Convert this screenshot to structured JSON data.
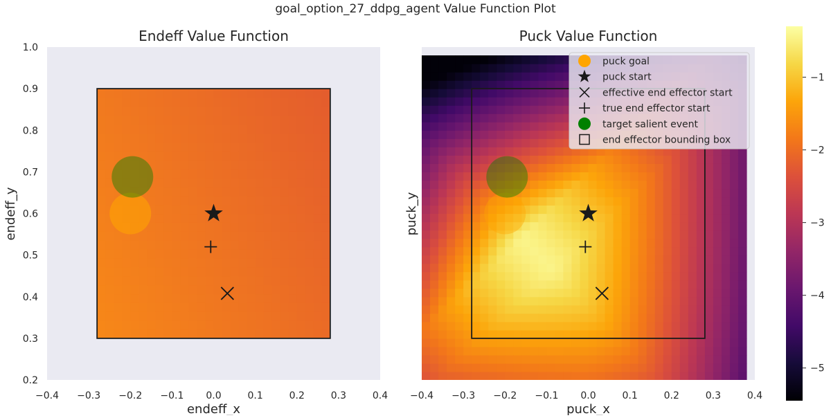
{
  "figure": {
    "suptitle": "goal_option_27_ddpg_agent Value Function Plot"
  },
  "colors": {
    "axes_bg": "#eaeaf2",
    "endeff_fill": "#ed6f2b",
    "box_stroke": "#1a1a1a",
    "goal": "#ffa500",
    "salient": "#008000",
    "marker": "#1a1a1a"
  },
  "colorbar": {
    "colormap": "inferno",
    "vmin": -5.45,
    "vmax": -0.3,
    "ticks": [
      -1,
      -2,
      -3,
      -4,
      -5
    ],
    "tick_labels": [
      "−1",
      "−2",
      "−3",
      "−4",
      "−5"
    ]
  },
  "legend": {
    "location": "upper right",
    "entries": [
      {
        "label": "puck goal",
        "marker": "circle",
        "color": "#ffa500"
      },
      {
        "label": "puck start",
        "marker": "star",
        "color": "#1a1a1a"
      },
      {
        "label": "effective end effector start",
        "marker": "x",
        "color": "#1a1a1a"
      },
      {
        "label": "true end effector start",
        "marker": "plus",
        "color": "#1a1a1a"
      },
      {
        "label": "target salient event",
        "marker": "circle",
        "color": "#008000"
      },
      {
        "label": "end effector bounding box",
        "marker": "square",
        "color": "#1a1a1a"
      }
    ]
  },
  "chart_data": [
    {
      "type": "heatmap",
      "title": "Endeff Value Function",
      "xlabel": "endeff_x",
      "ylabel": "endeff_y",
      "xlim": [
        -0.4,
        0.4
      ],
      "ylim": [
        0.2,
        1.0
      ],
      "xticks": [
        -0.4,
        -0.3,
        -0.2,
        -0.1,
        0.0,
        0.1,
        0.2,
        0.3,
        0.4
      ],
      "xtick_labels": [
        "−0.4",
        "−0.3",
        "−0.2",
        "−0.1",
        "0.0",
        "0.1",
        "0.2",
        "0.3",
        "0.4"
      ],
      "yticks": [
        0.2,
        0.3,
        0.4,
        0.5,
        0.6,
        0.7,
        0.8,
        0.9,
        1.0
      ],
      "ytick_labels": [
        "0.2",
        "0.3",
        "0.4",
        "0.5",
        "0.6",
        "0.7",
        "0.8",
        "0.9",
        "1.0"
      ],
      "grid": false,
      "heatmap_extent": {
        "x": [
          -0.28,
          0.28
        ],
        "y": [
          0.3,
          0.9
        ]
      },
      "value_range_approx": [
        -2.3,
        -1.7
      ],
      "bounding_box": {
        "x": [
          -0.28,
          0.28
        ],
        "y": [
          0.3,
          0.9
        ]
      },
      "puck_goal": {
        "x": -0.2,
        "y": 0.6
      },
      "target_salient_event": {
        "x": -0.195,
        "y": 0.688
      },
      "puck_start": {
        "x": 0.0,
        "y": 0.6
      },
      "true_end_effector_start": {
        "x": -0.007,
        "y": 0.52
      },
      "effective_end_effector_start": {
        "x": 0.033,
        "y": 0.408
      }
    },
    {
      "type": "heatmap",
      "title": "Puck Value Function",
      "xlabel": "puck_x",
      "ylabel": "puck_y",
      "xlim": [
        -0.4,
        0.4
      ],
      "ylim": [
        0.2,
        1.0
      ],
      "xticks": [
        -0.4,
        -0.3,
        -0.2,
        -0.1,
        0.0,
        0.1,
        0.2,
        0.3,
        0.4
      ],
      "xtick_labels": [
        "−0.4",
        "−0.3",
        "−0.2",
        "−0.1",
        "0.0",
        "0.1",
        "0.2",
        "0.3",
        "0.4"
      ],
      "grid": false,
      "heatmap_extent": {
        "x": [
          -0.4,
          0.38
        ],
        "y": [
          0.2,
          0.98
        ]
      },
      "value_range_approx": [
        -5.4,
        -0.4
      ],
      "bounding_box": {
        "x": [
          -0.28,
          0.28
        ],
        "y": [
          0.3,
          0.9
        ]
      },
      "puck_goal": {
        "x": -0.2,
        "y": 0.6
      },
      "target_salient_event": {
        "x": -0.195,
        "y": 0.688
      },
      "puck_start": {
        "x": 0.0,
        "y": 0.6
      },
      "true_end_effector_start": {
        "x": -0.007,
        "y": 0.52
      },
      "effective_end_effector_start": {
        "x": 0.033,
        "y": 0.408
      }
    }
  ]
}
